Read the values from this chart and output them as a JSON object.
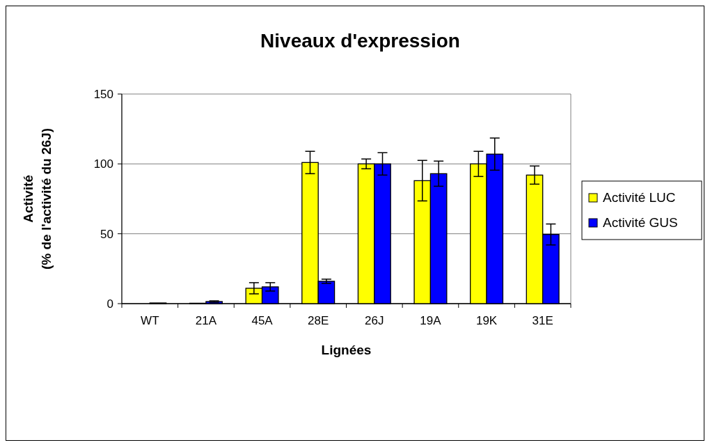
{
  "chart_data": {
    "type": "bar",
    "title": "Niveaux d'expression",
    "xlabel": "Lignées",
    "ylabel": "Activité\n(% de l'activité du 26J)",
    "categories": [
      "WT",
      "21A",
      "45A",
      "28E",
      "26J",
      "19A",
      "19K",
      "31E"
    ],
    "series": [
      {
        "name": "Activité LUC",
        "color": "#ffff00",
        "values": [
          0,
          0.3,
          11,
          101,
          100,
          88,
          100,
          92
        ],
        "errors": [
          null,
          null,
          4,
          8,
          3.5,
          14.5,
          9,
          6.5
        ]
      },
      {
        "name": "Activité GUS",
        "color": "#0000ff",
        "values": [
          0.5,
          1.5,
          12,
          16,
          100,
          93,
          107,
          49.5
        ],
        "errors": [
          null,
          0.5,
          3,
          1.5,
          8,
          9,
          11.5,
          7.5
        ]
      }
    ],
    "ylim": [
      0,
      150
    ],
    "yticks": [
      0,
      50,
      100,
      150
    ],
    "grid": "y",
    "legend": "right"
  }
}
